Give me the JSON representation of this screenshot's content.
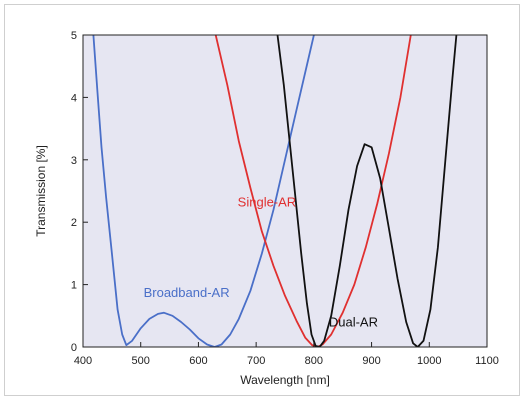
{
  "chart_data": {
    "type": "line",
    "xlabel": "Wavelength [nm]",
    "ylabel": "Transmission [%]",
    "xlim": [
      400,
      1100
    ],
    "ylim": [
      0,
      5
    ],
    "x_ticks": [
      400,
      500,
      600,
      700,
      800,
      900,
      1000,
      1100
    ],
    "y_ticks": [
      0,
      1,
      2,
      3,
      4,
      5
    ],
    "grid": false,
    "plot_background": "#e6e6f2",
    "series": [
      {
        "name": "Broadband-AR",
        "color": "#4a6fc8",
        "label_at": [
          505,
          0.8
        ],
        "points": [
          [
            418,
            5.0
          ],
          [
            425,
            4.1
          ],
          [
            432,
            3.2
          ],
          [
            440,
            2.4
          ],
          [
            450,
            1.5
          ],
          [
            460,
            0.6
          ],
          [
            468,
            0.2
          ],
          [
            475,
            0.03
          ],
          [
            485,
            0.1
          ],
          [
            500,
            0.3
          ],
          [
            515,
            0.45
          ],
          [
            530,
            0.53
          ],
          [
            540,
            0.55
          ],
          [
            555,
            0.5
          ],
          [
            570,
            0.4
          ],
          [
            585,
            0.28
          ],
          [
            600,
            0.14
          ],
          [
            615,
            0.04
          ],
          [
            628,
            0.0
          ],
          [
            640,
            0.04
          ],
          [
            655,
            0.2
          ],
          [
            670,
            0.45
          ],
          [
            690,
            0.9
          ],
          [
            710,
            1.5
          ],
          [
            730,
            2.2
          ],
          [
            750,
            3.0
          ],
          [
            770,
            3.8
          ],
          [
            790,
            4.6
          ],
          [
            800,
            5.0
          ]
        ]
      },
      {
        "name": "Single-AR",
        "color": "#e03030",
        "label_at": [
          668,
          2.25
        ],
        "points": [
          [
            630,
            5.0
          ],
          [
            650,
            4.2
          ],
          [
            670,
            3.3
          ],
          [
            690,
            2.55
          ],
          [
            710,
            1.85
          ],
          [
            730,
            1.3
          ],
          [
            750,
            0.82
          ],
          [
            770,
            0.42
          ],
          [
            785,
            0.15
          ],
          [
            797,
            0.03
          ],
          [
            806,
            0.0
          ],
          [
            815,
            0.04
          ],
          [
            830,
            0.2
          ],
          [
            850,
            0.55
          ],
          [
            870,
            1.0
          ],
          [
            890,
            1.6
          ],
          [
            910,
            2.3
          ],
          [
            930,
            3.1
          ],
          [
            950,
            4.0
          ],
          [
            968,
            5.0
          ]
        ]
      },
      {
        "name": "Dual-AR",
        "color": "#111111",
        "label_at": [
          826,
          0.33
        ],
        "points": [
          [
            737,
            5.0
          ],
          [
            748,
            4.2
          ],
          [
            758,
            3.3
          ],
          [
            768,
            2.4
          ],
          [
            778,
            1.5
          ],
          [
            788,
            0.7
          ],
          [
            796,
            0.2
          ],
          [
            803,
            0.02
          ],
          [
            810,
            0.0
          ],
          [
            818,
            0.1
          ],
          [
            830,
            0.5
          ],
          [
            845,
            1.3
          ],
          [
            860,
            2.2
          ],
          [
            875,
            2.9
          ],
          [
            888,
            3.25
          ],
          [
            900,
            3.2
          ],
          [
            915,
            2.7
          ],
          [
            930,
            1.9
          ],
          [
            945,
            1.1
          ],
          [
            960,
            0.4
          ],
          [
            972,
            0.06
          ],
          [
            980,
            0.0
          ],
          [
            990,
            0.1
          ],
          [
            1002,
            0.6
          ],
          [
            1015,
            1.6
          ],
          [
            1028,
            3.0
          ],
          [
            1040,
            4.3
          ],
          [
            1047,
            5.0
          ]
        ]
      }
    ]
  }
}
